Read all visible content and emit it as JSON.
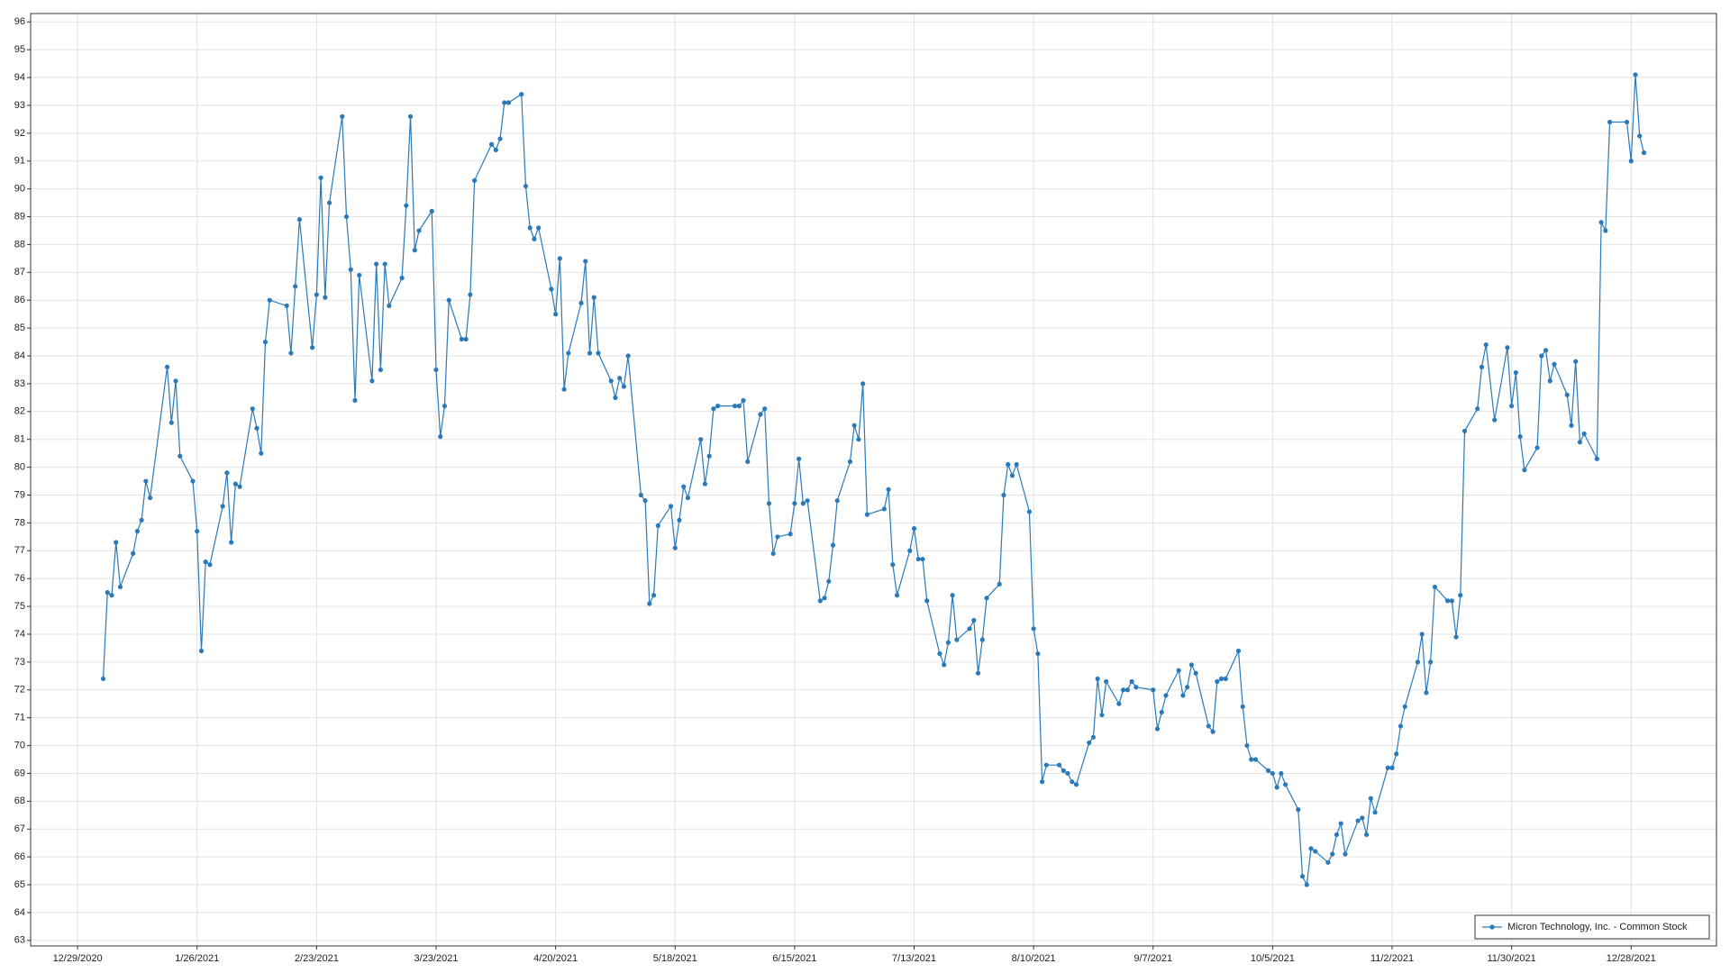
{
  "chart_data": {
    "type": "line",
    "x": [
      "1/4/2021",
      "1/5/2021",
      "1/6/2021",
      "1/7/2021",
      "1/8/2021",
      "1/11/2021",
      "1/12/2021",
      "1/13/2021",
      "1/14/2021",
      "1/15/2021",
      "1/19/2021",
      "1/20/2021",
      "1/21/2021",
      "1/22/2021",
      "1/25/2021",
      "1/26/2021",
      "1/27/2021",
      "1/28/2021",
      "1/29/2021",
      "2/1/2021",
      "2/2/2021",
      "2/3/2021",
      "2/4/2021",
      "2/5/2021",
      "2/8/2021",
      "2/9/2021",
      "2/10/2021",
      "2/11/2021",
      "2/12/2021",
      "2/16/2021",
      "2/17/2021",
      "2/18/2021",
      "2/19/2021",
      "2/22/2021",
      "2/23/2021",
      "2/24/2021",
      "2/25/2021",
      "2/26/2021",
      "3/1/2021",
      "3/2/2021",
      "3/3/2021",
      "3/4/2021",
      "3/5/2021",
      "3/8/2021",
      "3/9/2021",
      "3/10/2021",
      "3/11/2021",
      "3/12/2021",
      "3/15/2021",
      "3/16/2021",
      "3/17/2021",
      "3/18/2021",
      "3/19/2021",
      "3/22/2021",
      "3/23/2021",
      "3/24/2021",
      "3/25/2021",
      "3/26/2021",
      "3/29/2021",
      "3/30/2021",
      "3/31/2021",
      "4/1/2021",
      "4/5/2021",
      "4/6/2021",
      "4/7/2021",
      "4/8/2021",
      "4/9/2021",
      "4/12/2021",
      "4/13/2021",
      "4/14/2021",
      "4/15/2021",
      "4/16/2021",
      "4/19/2021",
      "4/20/2021",
      "4/21/2021",
      "4/22/2021",
      "4/23/2021",
      "4/26/2021",
      "4/27/2021",
      "4/28/2021",
      "4/29/2021",
      "4/30/2021",
      "5/3/2021",
      "5/4/2021",
      "5/5/2021",
      "5/6/2021",
      "5/7/2021",
      "5/10/2021",
      "5/11/2021",
      "5/12/2021",
      "5/13/2021",
      "5/14/2021",
      "5/17/2021",
      "5/18/2021",
      "5/19/2021",
      "5/20/2021",
      "5/21/2021",
      "5/24/2021",
      "5/25/2021",
      "5/26/2021",
      "5/27/2021",
      "5/28/2021",
      "6/1/2021",
      "6/2/2021",
      "6/3/2021",
      "6/4/2021",
      "6/7/2021",
      "6/8/2021",
      "6/9/2021",
      "6/10/2021",
      "6/11/2021",
      "6/14/2021",
      "6/15/2021",
      "6/16/2021",
      "6/17/2021",
      "6/18/2021",
      "6/21/2021",
      "6/22/2021",
      "6/23/2021",
      "6/24/2021",
      "6/25/2021",
      "6/28/2021",
      "6/29/2021",
      "6/30/2021",
      "7/1/2021",
      "7/2/2021",
      "7/6/2021",
      "7/7/2021",
      "7/8/2021",
      "7/9/2021",
      "7/12/2021",
      "7/13/2021",
      "7/14/2021",
      "7/15/2021",
      "7/16/2021",
      "7/19/2021",
      "7/20/2021",
      "7/21/2021",
      "7/22/2021",
      "7/23/2021",
      "7/26/2021",
      "7/27/2021",
      "7/28/2021",
      "7/29/2021",
      "7/30/2021",
      "8/2/2021",
      "8/3/2021",
      "8/4/2021",
      "8/5/2021",
      "8/6/2021",
      "8/9/2021",
      "8/10/2021",
      "8/11/2021",
      "8/12/2021",
      "8/13/2021",
      "8/16/2021",
      "8/17/2021",
      "8/18/2021",
      "8/19/2021",
      "8/20/2021",
      "8/23/2021",
      "8/24/2021",
      "8/25/2021",
      "8/26/2021",
      "8/27/2021",
      "8/30/2021",
      "8/31/2021",
      "9/1/2021",
      "9/2/2021",
      "9/3/2021",
      "9/7/2021",
      "9/8/2021",
      "9/9/2021",
      "9/10/2021",
      "9/13/2021",
      "9/14/2021",
      "9/15/2021",
      "9/16/2021",
      "9/17/2021",
      "9/20/2021",
      "9/21/2021",
      "9/22/2021",
      "9/23/2021",
      "9/24/2021",
      "9/27/2021",
      "9/28/2021",
      "9/29/2021",
      "9/30/2021",
      "10/1/2021",
      "10/4/2021",
      "10/5/2021",
      "10/6/2021",
      "10/7/2021",
      "10/8/2021",
      "10/11/2021",
      "10/12/2021",
      "10/13/2021",
      "10/14/2021",
      "10/15/2021",
      "10/18/2021",
      "10/19/2021",
      "10/20/2021",
      "10/21/2021",
      "10/22/2021",
      "10/25/2021",
      "10/26/2021",
      "10/27/2021",
      "10/28/2021",
      "10/29/2021",
      "11/1/2021",
      "11/2/2021",
      "11/3/2021",
      "11/4/2021",
      "11/5/2021",
      "11/8/2021",
      "11/9/2021",
      "11/10/2021",
      "11/11/2021",
      "11/12/2021",
      "11/15/2021",
      "11/16/2021",
      "11/17/2021",
      "11/18/2021",
      "11/19/2021",
      "11/22/2021",
      "11/23/2021",
      "11/24/2021",
      "11/26/2021",
      "11/29/2021",
      "11/30/2021",
      "12/1/2021",
      "12/2/2021",
      "12/3/2021",
      "12/6/2021",
      "12/7/2021",
      "12/8/2021",
      "12/9/2021",
      "12/10/2021",
      "12/13/2021",
      "12/14/2021",
      "12/15/2021",
      "12/16/2021",
      "12/17/2021",
      "12/20/2021",
      "12/21/2021",
      "12/22/2021",
      "12/23/2021",
      "12/27/2021",
      "12/28/2021",
      "12/29/2021",
      "12/30/2021",
      "12/31/2021"
    ],
    "series": [
      {
        "name": "Micron Technology, Inc. - Common Stock",
        "color": "#2a7ab9",
        "values": [
          72.4,
          75.5,
          75.4,
          77.3,
          75.7,
          76.9,
          77.7,
          78.1,
          79.5,
          78.9,
          83.6,
          81.6,
          83.1,
          80.4,
          79.5,
          77.7,
          73.4,
          76.6,
          76.5,
          78.6,
          79.8,
          77.3,
          79.4,
          79.3,
          82.1,
          81.4,
          80.5,
          84.5,
          86.0,
          85.8,
          84.1,
          86.5,
          88.9,
          84.3,
          86.2,
          90.4,
          86.1,
          89.5,
          92.6,
          89.0,
          87.1,
          82.4,
          86.9,
          83.1,
          87.3,
          83.5,
          87.3,
          85.8,
          86.8,
          89.4,
          92.6,
          87.8,
          88.5,
          89.2,
          83.5,
          81.1,
          82.2,
          86.0,
          84.6,
          84.6,
          86.2,
          90.3,
          91.6,
          91.4,
          91.8,
          93.1,
          93.1,
          93.4,
          90.1,
          88.6,
          88.2,
          88.6,
          86.4,
          85.5,
          87.5,
          82.8,
          84.1,
          85.9,
          87.4,
          84.1,
          86.1,
          84.1,
          83.1,
          82.5,
          83.2,
          82.9,
          84.0,
          79.0,
          78.8,
          75.1,
          75.4,
          77.9,
          78.6,
          77.1,
          78.1,
          79.3,
          78.9,
          81.0,
          79.4,
          80.4,
          82.1,
          82.2,
          82.2,
          82.2,
          82.4,
          80.2,
          81.9,
          82.1,
          78.7,
          76.9,
          77.5,
          77.6,
          78.7,
          80.3,
          78.7,
          78.8,
          75.2,
          75.3,
          75.9,
          77.2,
          78.8,
          80.2,
          81.5,
          81.0,
          83.0,
          78.3,
          78.5,
          79.2,
          76.5,
          75.4,
          77.0,
          77.8,
          76.7,
          76.7,
          75.2,
          73.3,
          72.9,
          73.7,
          75.4,
          73.8,
          74.2,
          74.5,
          72.6,
          73.8,
          75.3,
          75.8,
          79.0,
          80.1,
          79.7,
          80.1,
          78.4,
          74.2,
          73.3,
          68.7,
          69.3,
          69.3,
          69.1,
          69.0,
          68.7,
          68.6,
          70.1,
          70.3,
          72.4,
          71.1,
          72.3,
          71.5,
          72.0,
          72.0,
          72.3,
          72.1,
          72.0,
          70.6,
          71.2,
          71.8,
          72.7,
          71.8,
          72.1,
          72.9,
          72.6,
          70.7,
          70.5,
          72.3,
          72.4,
          72.4,
          73.4,
          71.4,
          70.0,
          69.5,
          69.5,
          69.1,
          69.0,
          68.5,
          69.0,
          68.6,
          67.7,
          65.3,
          65.0,
          66.3,
          66.2,
          65.8,
          66.1,
          66.8,
          67.2,
          66.1,
          67.3,
          67.4,
          66.8,
          68.1,
          67.6,
          69.2,
          69.2,
          69.7,
          70.7,
          71.4,
          73.0,
          74.0,
          71.9,
          73.0,
          75.7,
          75.2,
          75.2,
          73.9,
          75.4,
          81.3,
          82.1,
          83.6,
          84.4,
          81.7,
          84.3,
          82.2,
          83.4,
          81.1,
          79.9,
          80.7,
          84.0,
          84.2,
          83.1,
          83.7,
          82.6,
          81.5,
          83.8,
          80.9,
          81.2,
          80.3,
          88.8,
          88.5,
          92.4,
          92.4,
          91.0,
          94.1,
          91.9,
          91.3
        ]
      }
    ],
    "xlim": [
      "12/18/2020",
      "1/17/2022"
    ],
    "xticks": [
      "12/29/2020",
      "1/26/2021",
      "2/23/2021",
      "3/23/2021",
      "4/20/2021",
      "5/18/2021",
      "6/15/2021",
      "7/13/2021",
      "8/10/2021",
      "9/7/2021",
      "10/5/2021",
      "11/2/2021",
      "11/30/2021",
      "12/28/2021"
    ],
    "ylim": [
      62.8,
      96.3
    ],
    "yticks": [
      63,
      64,
      65,
      66,
      67,
      68,
      69,
      70,
      71,
      72,
      73,
      74,
      75,
      76,
      77,
      78,
      79,
      80,
      81,
      82,
      83,
      84,
      85,
      86,
      87,
      88,
      89,
      90,
      91,
      92,
      93,
      94,
      95,
      96
    ],
    "grid": true,
    "legend": "lower right"
  }
}
